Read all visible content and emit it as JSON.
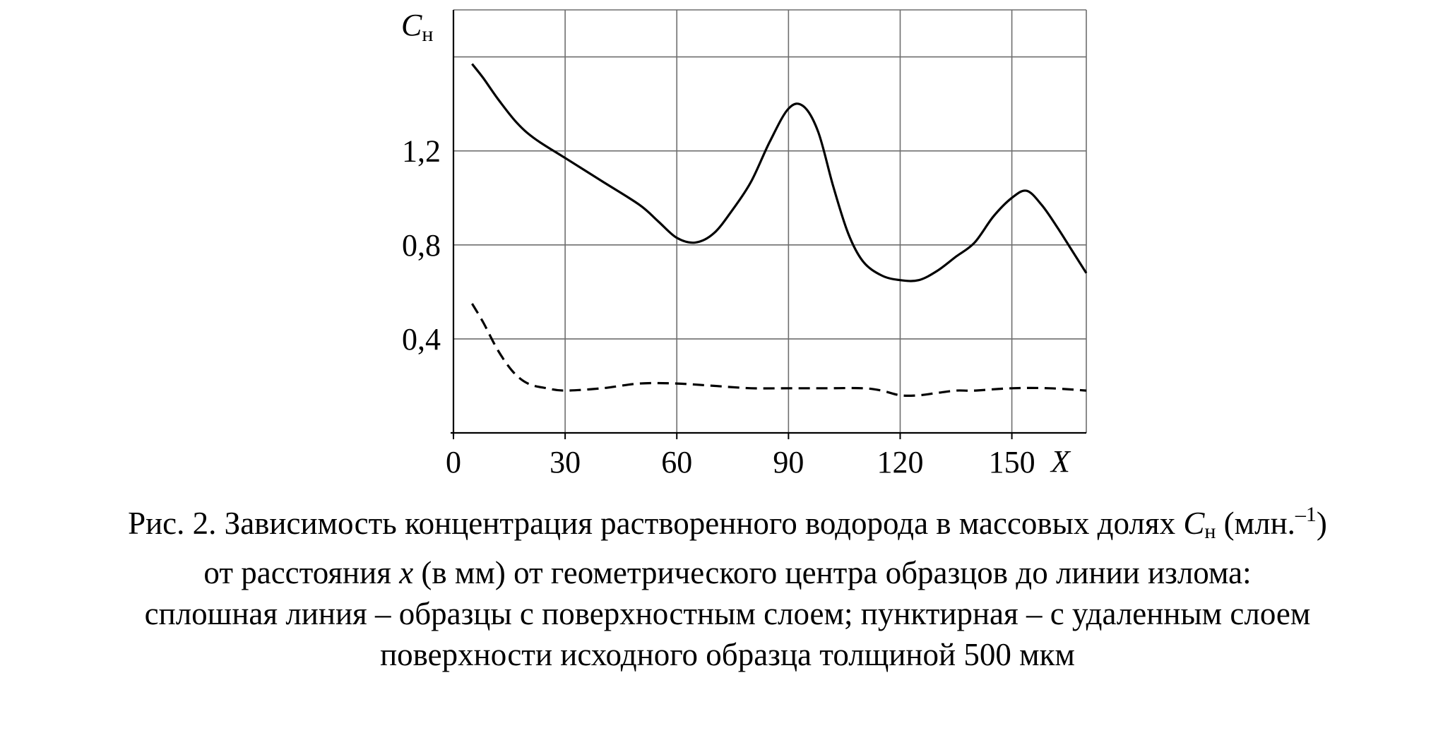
{
  "chart_data": {
    "type": "line",
    "x_axis_label": "X",
    "y_axis_label_main": "C",
    "y_axis_label_sub": "н",
    "xlim": [
      0,
      170
    ],
    "ylim": [
      0,
      1.8
    ],
    "x_ticks": [
      0,
      30,
      60,
      90,
      120,
      150
    ],
    "x_tick_labels": [
      "0",
      "30",
      "60",
      "90",
      "120",
      "150"
    ],
    "y_ticks": [
      0.4,
      0.8,
      1.2
    ],
    "y_tick_labels": [
      "0,4",
      "0,8",
      "1,2"
    ],
    "x_grid": [
      30,
      60,
      90,
      120,
      150,
      170
    ],
    "y_grid": [
      0.4,
      0.8,
      1.2,
      1.6,
      1.8
    ],
    "grid": true,
    "series": [
      {
        "style": "solid",
        "x": [
          5,
          8,
          12,
          17,
          22,
          30,
          40,
          50,
          55,
          60,
          65,
          70,
          75,
          80,
          85,
          90,
          94,
          98,
          102,
          106,
          110,
          115,
          120,
          125,
          130,
          135,
          140,
          145,
          150,
          154,
          158,
          162,
          166,
          170
        ],
        "y": [
          1.57,
          1.51,
          1.42,
          1.32,
          1.25,
          1.17,
          1.07,
          0.97,
          0.9,
          0.83,
          0.81,
          0.85,
          0.95,
          1.07,
          1.24,
          1.38,
          1.39,
          1.28,
          1.05,
          0.85,
          0.73,
          0.67,
          0.65,
          0.65,
          0.69,
          0.75,
          0.81,
          0.92,
          1.0,
          1.03,
          0.97,
          0.88,
          0.78,
          0.68
        ]
      },
      {
        "style": "dashed",
        "x": [
          5,
          8,
          12,
          16,
          20,
          25,
          30,
          40,
          50,
          60,
          70,
          80,
          90,
          100,
          110,
          115,
          120,
          125,
          130,
          135,
          140,
          150,
          160,
          170
        ],
        "y": [
          0.55,
          0.47,
          0.35,
          0.26,
          0.21,
          0.19,
          0.18,
          0.19,
          0.21,
          0.21,
          0.2,
          0.19,
          0.19,
          0.19,
          0.19,
          0.18,
          0.16,
          0.16,
          0.17,
          0.18,
          0.18,
          0.19,
          0.19,
          0.18
        ]
      }
    ]
  },
  "caption": {
    "line1_prefix": "Рис. 2. Зависимость концентрация растворенного водорода в массовых долях ",
    "line1_symbol": "C",
    "line1_symbol_sub": "н",
    "line1_unit_open": " (млн.",
    "line1_unit_sup": "–1",
    "line1_unit_close": ")",
    "line2_prefix": "от расстояния ",
    "line2_var": "x",
    "line2_suffix": " (в мм) от геометрического центра образцов до линии излома:",
    "line3": "сплошная линия – образцы с поверхностным слоем; пунктирная – с удаленным слоем",
    "line4": "поверхности исходного образца толщиной 500 мкм"
  }
}
